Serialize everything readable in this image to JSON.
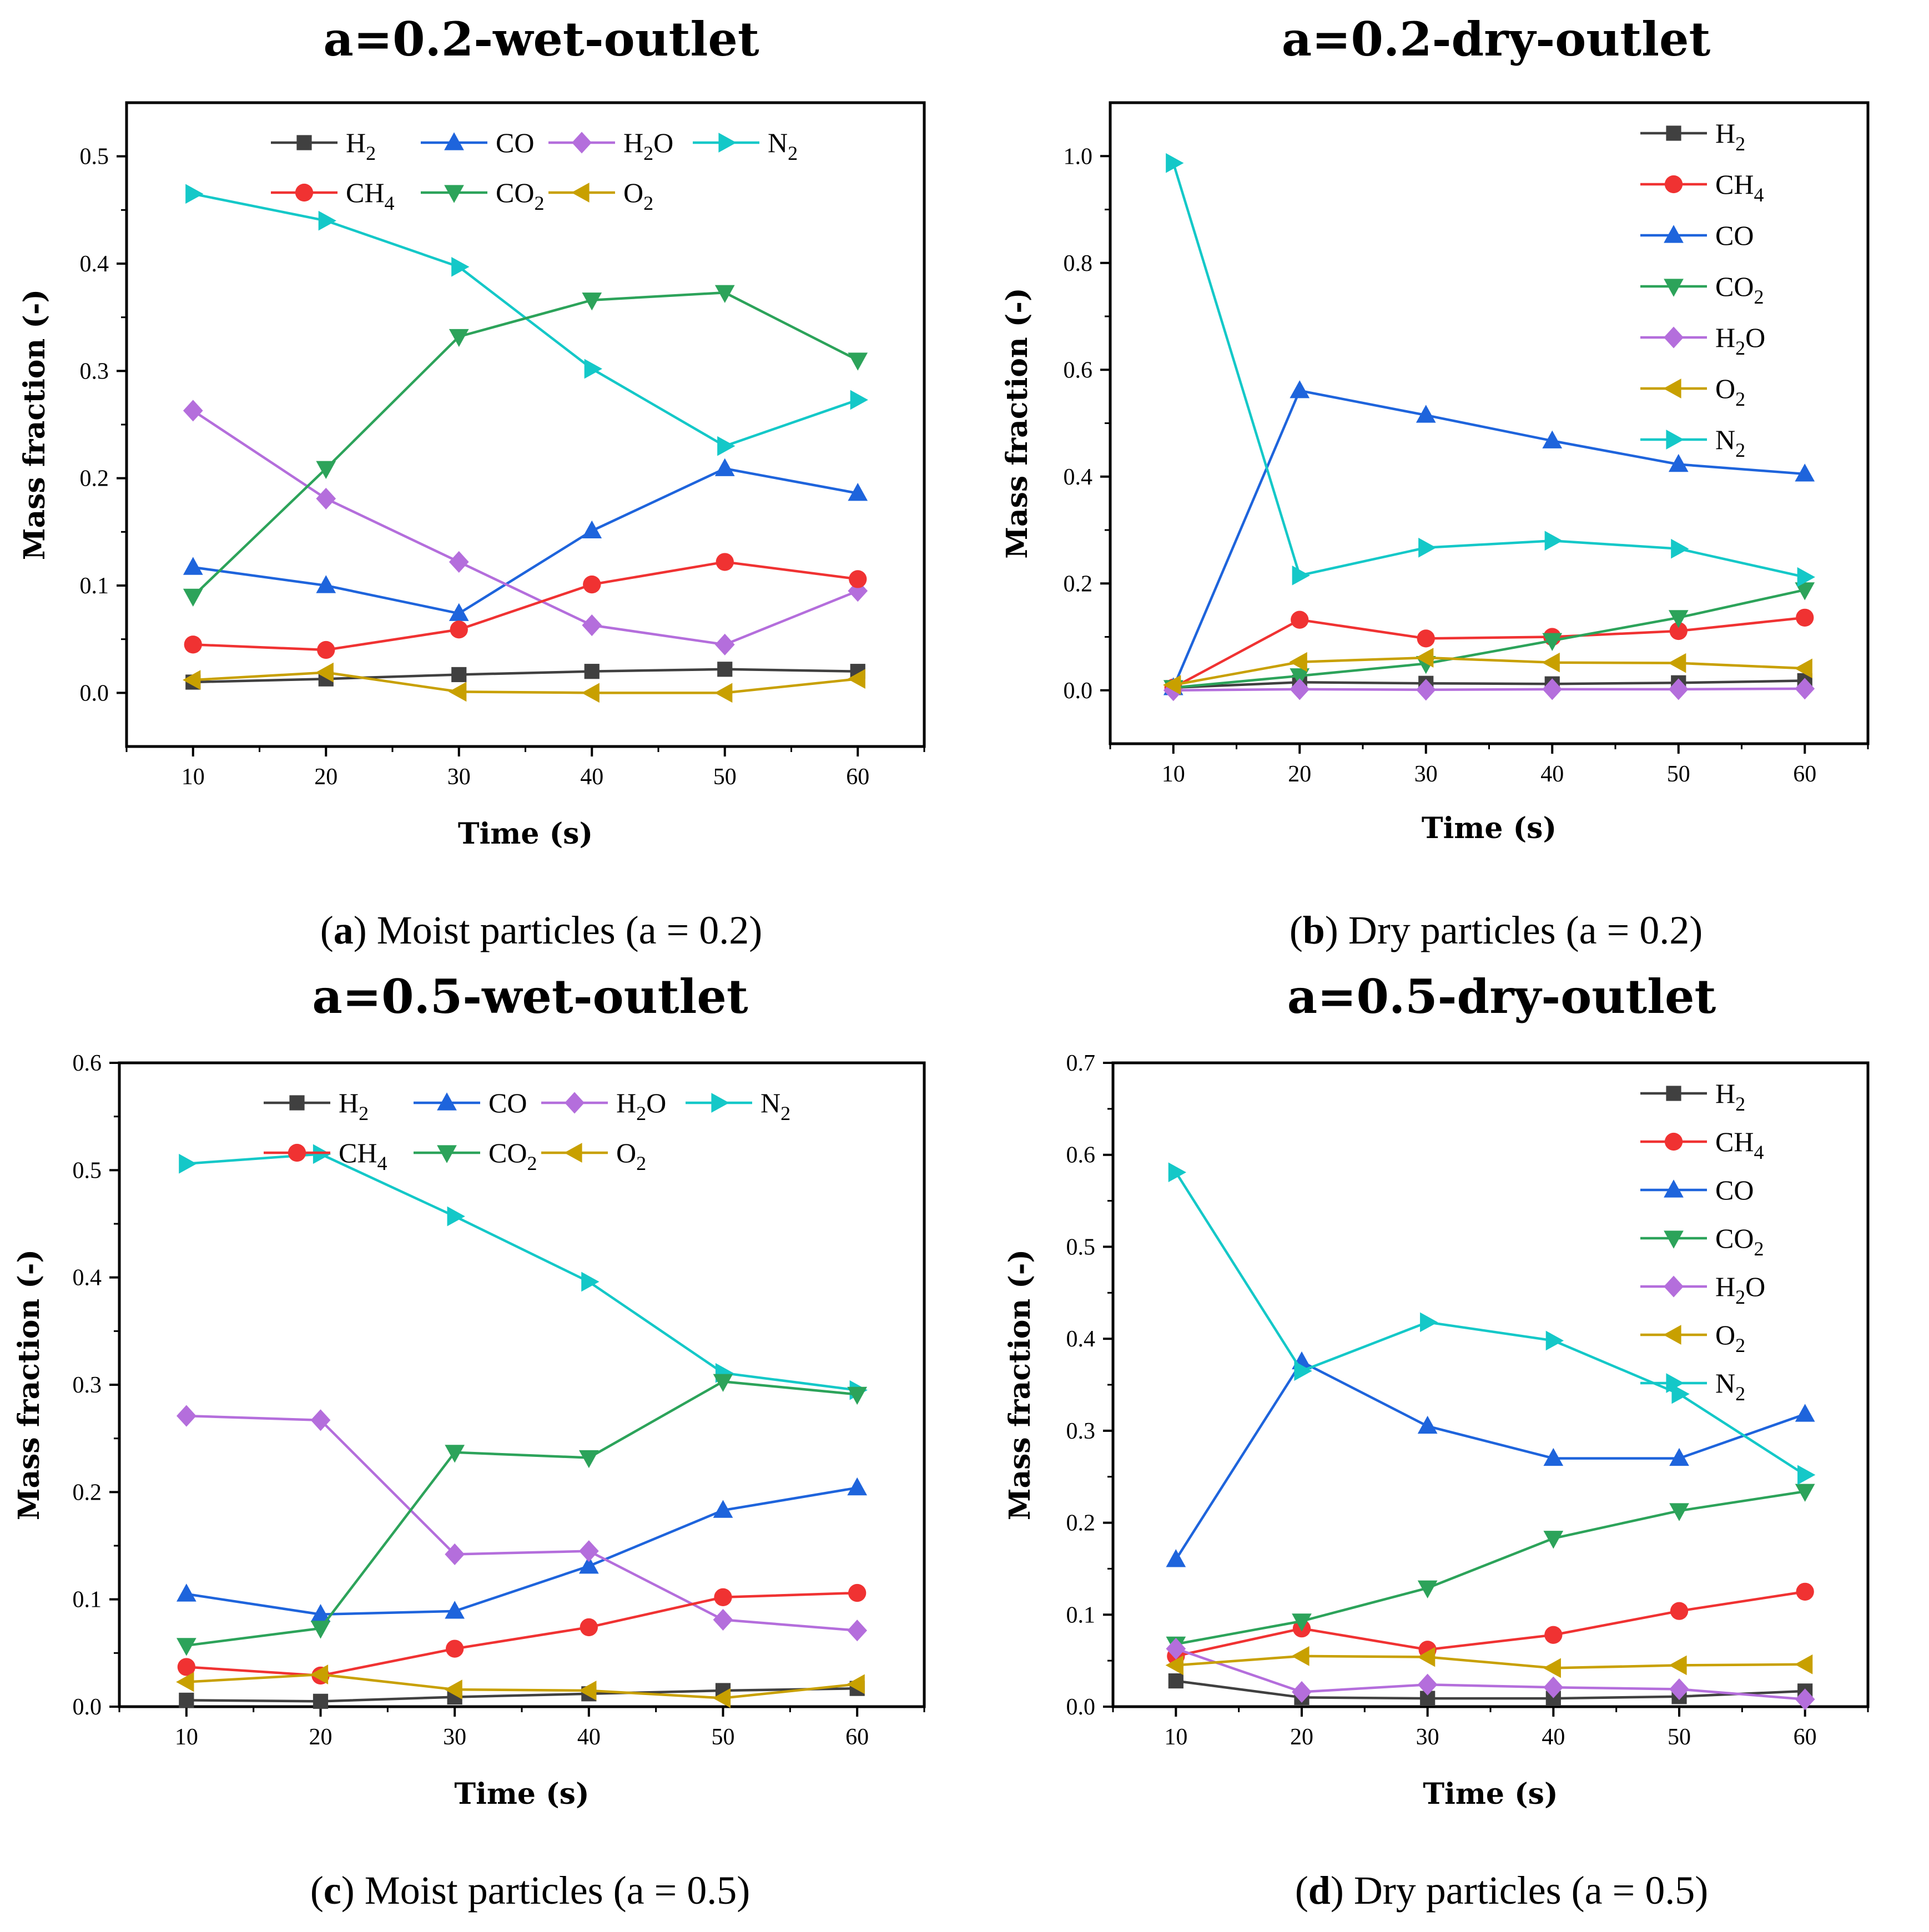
{
  "colors": {
    "H2": "#404040",
    "CH4": "#f03232",
    "CO": "#1e64dc",
    "CO2": "#2ca35a",
    "H2O": "#b46edc",
    "O2": "#c8a000",
    "N2": "#14c8c8"
  },
  "chart_data": [
    {
      "type": "line",
      "title": "a=0.2-wet-outlet",
      "caption": {
        "letter": "a",
        "text": " Moist particles (a = 0.2)"
      },
      "xlabel": "Time (s)",
      "ylabel": "Mass fraction (-)",
      "x": [
        10,
        20,
        30,
        40,
        50,
        60
      ],
      "xlim": [
        5,
        65
      ],
      "ylim": [
        -0.05,
        0.55
      ],
      "yticks": [
        "0.0",
        "0.1",
        "0.2",
        "0.3",
        "0.4",
        "0.5"
      ],
      "ytick_values": [
        0,
        0.1,
        0.2,
        0.3,
        0.4,
        0.5
      ],
      "legend_layout": "top-rows",
      "series": [
        {
          "key": "H2",
          "marker": "square",
          "values": [
            0.01,
            0.013,
            0.017,
            0.02,
            0.022,
            0.02
          ]
        },
        {
          "key": "CO",
          "marker": "triangle-up",
          "values": [
            0.117,
            0.1,
            0.074,
            0.151,
            0.209,
            0.186
          ]
        },
        {
          "key": "H2O",
          "marker": "diamond",
          "values": [
            0.263,
            0.181,
            0.122,
            0.063,
            0.045,
            0.095
          ]
        },
        {
          "key": "N2",
          "marker": "triangle-right",
          "values": [
            0.465,
            0.44,
            0.397,
            0.302,
            0.23,
            0.273
          ]
        },
        {
          "key": "CH4",
          "marker": "circle",
          "values": [
            0.045,
            0.04,
            0.059,
            0.101,
            0.122,
            0.106
          ]
        },
        {
          "key": "CO2",
          "marker": "triangle-down",
          "values": [
            0.09,
            0.209,
            0.332,
            0.366,
            0.373,
            0.31
          ]
        },
        {
          "key": "O2",
          "marker": "triangle-left",
          "values": [
            0.012,
            0.019,
            0.001,
            0.0,
            0.0,
            0.013
          ]
        }
      ]
    },
    {
      "type": "line",
      "title": "a=0.2-dry-outlet",
      "caption": {
        "letter": "b",
        "text": " Dry particles (a = 0.2)"
      },
      "xlabel": "Time (s)",
      "ylabel": "Mass fraction (-)",
      "x": [
        10,
        20,
        30,
        40,
        50,
        60
      ],
      "xlim": [
        5,
        65
      ],
      "ylim": [
        -0.1,
        1.1
      ],
      "yticks": [
        "0.0",
        "0.2",
        "0.4",
        "0.6",
        "0.8",
        "1.0"
      ],
      "ytick_values": [
        0,
        0.2,
        0.4,
        0.6,
        0.8,
        1.0
      ],
      "legend_layout": "column",
      "series": [
        {
          "key": "H2",
          "marker": "square",
          "values": [
            0.005,
            0.015,
            0.013,
            0.012,
            0.014,
            0.018
          ]
        },
        {
          "key": "CH4",
          "marker": "circle",
          "values": [
            0.005,
            0.132,
            0.097,
            0.1,
            0.111,
            0.136
          ]
        },
        {
          "key": "CO",
          "marker": "triangle-up",
          "values": [
            0.005,
            0.561,
            0.515,
            0.467,
            0.423,
            0.405
          ]
        },
        {
          "key": "CO2",
          "marker": "triangle-down",
          "values": [
            0.005,
            0.027,
            0.05,
            0.093,
            0.136,
            0.188
          ]
        },
        {
          "key": "H2O",
          "marker": "diamond",
          "values": [
            0.0,
            0.002,
            0.001,
            0.002,
            0.002,
            0.003
          ]
        },
        {
          "key": "O2",
          "marker": "triangle-left",
          "values": [
            0.01,
            0.053,
            0.061,
            0.052,
            0.051,
            0.041
          ]
        },
        {
          "key": "N2",
          "marker": "triangle-right",
          "values": [
            0.987,
            0.215,
            0.267,
            0.28,
            0.265,
            0.212
          ]
        }
      ]
    },
    {
      "type": "line",
      "title": "a=0.5-wet-outlet",
      "caption": {
        "letter": "c",
        "text": " Moist particles (a = 0.5)"
      },
      "xlabel": "Time (s)",
      "ylabel": "Mass fraction (-)",
      "x": [
        10,
        20,
        30,
        40,
        50,
        60
      ],
      "xlim": [
        5,
        65
      ],
      "ylim": [
        0,
        0.6
      ],
      "yticks": [
        "0.0",
        "0.1",
        "0.2",
        "0.3",
        "0.4",
        "0.5",
        "0.6"
      ],
      "ytick_values": [
        0,
        0.1,
        0.2,
        0.3,
        0.4,
        0.5,
        0.6
      ],
      "legend_layout": "top-rows",
      "series": [
        {
          "key": "H2",
          "marker": "square",
          "values": [
            0.006,
            0.005,
            0.009,
            0.012,
            0.015,
            0.017
          ]
        },
        {
          "key": "CO",
          "marker": "triangle-up",
          "values": [
            0.105,
            0.086,
            0.089,
            0.131,
            0.183,
            0.204
          ]
        },
        {
          "key": "H2O",
          "marker": "diamond",
          "values": [
            0.271,
            0.267,
            0.142,
            0.145,
            0.081,
            0.071
          ]
        },
        {
          "key": "N2",
          "marker": "triangle-right",
          "values": [
            0.506,
            0.515,
            0.457,
            0.396,
            0.311,
            0.295
          ]
        },
        {
          "key": "CH4",
          "marker": "circle",
          "values": [
            0.037,
            0.029,
            0.054,
            0.074,
            0.102,
            0.106
          ]
        },
        {
          "key": "CO2",
          "marker": "triangle-down",
          "values": [
            0.057,
            0.073,
            0.237,
            0.232,
            0.303,
            0.291
          ]
        },
        {
          "key": "O2",
          "marker": "triangle-left",
          "values": [
            0.023,
            0.03,
            0.016,
            0.015,
            0.008,
            0.021
          ]
        }
      ]
    },
    {
      "type": "line",
      "title": "a=0.5-dry-outlet",
      "caption": {
        "letter": "d",
        "text": " Dry particles (a = 0.5)"
      },
      "xlabel": "Time (s)",
      "ylabel": "Mass fraction (-)",
      "x": [
        10,
        20,
        30,
        40,
        50,
        60
      ],
      "xlim": [
        5,
        65
      ],
      "ylim": [
        0,
        0.7
      ],
      "yticks": [
        "0.0",
        "0.1",
        "0.2",
        "0.3",
        "0.4",
        "0.5",
        "0.6",
        "0.7"
      ],
      "ytick_values": [
        0,
        0.1,
        0.2,
        0.3,
        0.4,
        0.5,
        0.6,
        0.7
      ],
      "legend_layout": "column",
      "series": [
        {
          "key": "H2",
          "marker": "square",
          "values": [
            0.028,
            0.01,
            0.009,
            0.009,
            0.011,
            0.017
          ]
        },
        {
          "key": "CH4",
          "marker": "circle",
          "values": [
            0.055,
            0.085,
            0.062,
            0.078,
            0.104,
            0.125
          ]
        },
        {
          "key": "CO",
          "marker": "triangle-up",
          "values": [
            0.16,
            0.375,
            0.305,
            0.27,
            0.27,
            0.318
          ]
        },
        {
          "key": "CO2",
          "marker": "triangle-down",
          "values": [
            0.068,
            0.093,
            0.129,
            0.183,
            0.213,
            0.234
          ]
        },
        {
          "key": "H2O",
          "marker": "diamond",
          "values": [
            0.063,
            0.016,
            0.024,
            0.021,
            0.019,
            0.008
          ]
        },
        {
          "key": "O2",
          "marker": "triangle-left",
          "values": [
            0.045,
            0.055,
            0.054,
            0.042,
            0.045,
            0.046
          ]
        },
        {
          "key": "N2",
          "marker": "triangle-right",
          "values": [
            0.581,
            0.365,
            0.418,
            0.398,
            0.34,
            0.252
          ]
        }
      ]
    }
  ],
  "legend_labels": {
    "H2": {
      "base": "H",
      "sub": "2",
      "tail": ""
    },
    "CH4": {
      "base": "CH",
      "sub": "4",
      "tail": ""
    },
    "CO": {
      "base": "CO",
      "sub": "",
      "tail": ""
    },
    "CO2": {
      "base": "CO",
      "sub": "2",
      "tail": ""
    },
    "H2O": {
      "base": "H",
      "sub": "2",
      "tail": "O"
    },
    "O2": {
      "base": "O",
      "sub": "2",
      "tail": ""
    },
    "N2": {
      "base": "N",
      "sub": "2",
      "tail": ""
    }
  }
}
